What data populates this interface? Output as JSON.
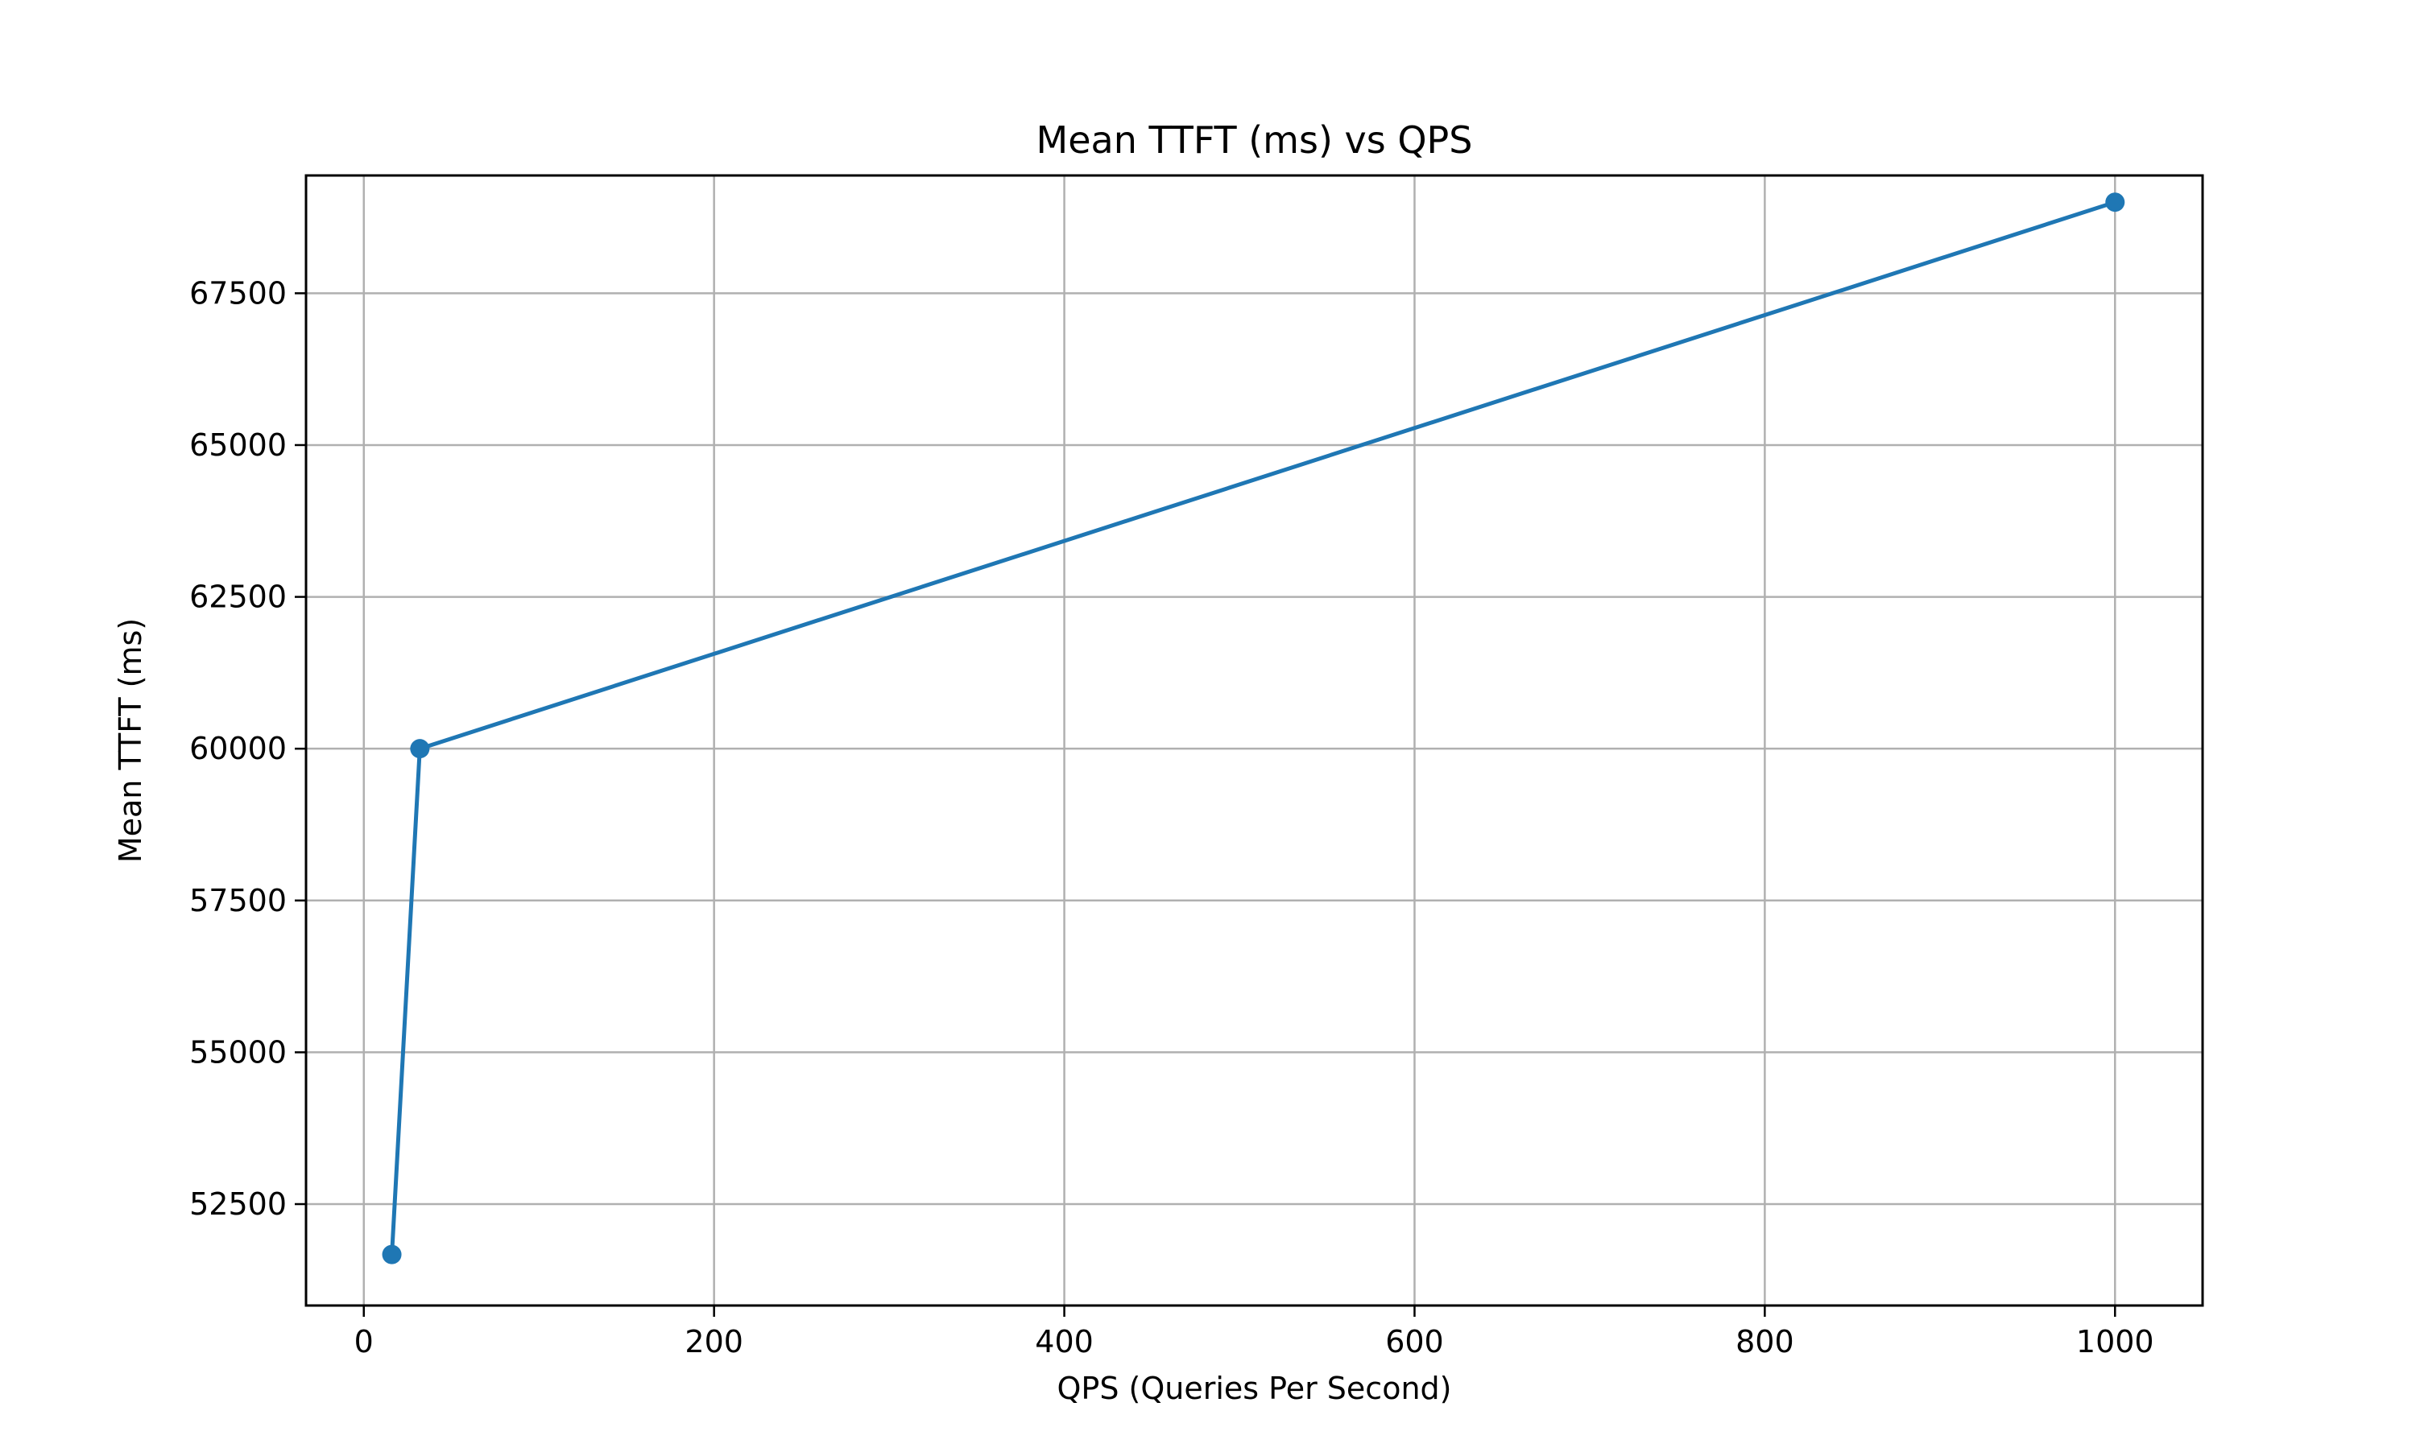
{
  "chart_data": {
    "type": "line",
    "title": "Mean TTFT (ms) vs QPS",
    "xlabel": "QPS (Queries Per Second)",
    "ylabel": "Mean TTFT (ms)",
    "xlim": [
      -33,
      1050
    ],
    "ylim": [
      50830,
      69440
    ],
    "xticks": [
      0,
      200,
      400,
      600,
      800,
      1000
    ],
    "yticks": [
      52500,
      55000,
      57500,
      60000,
      62500,
      65000,
      67500
    ],
    "grid": true,
    "series": [
      {
        "color": "#1f77b4",
        "marker": "circle",
        "x": [
          16,
          32,
          1000
        ],
        "y": [
          51670,
          60000,
          69000
        ]
      }
    ]
  }
}
